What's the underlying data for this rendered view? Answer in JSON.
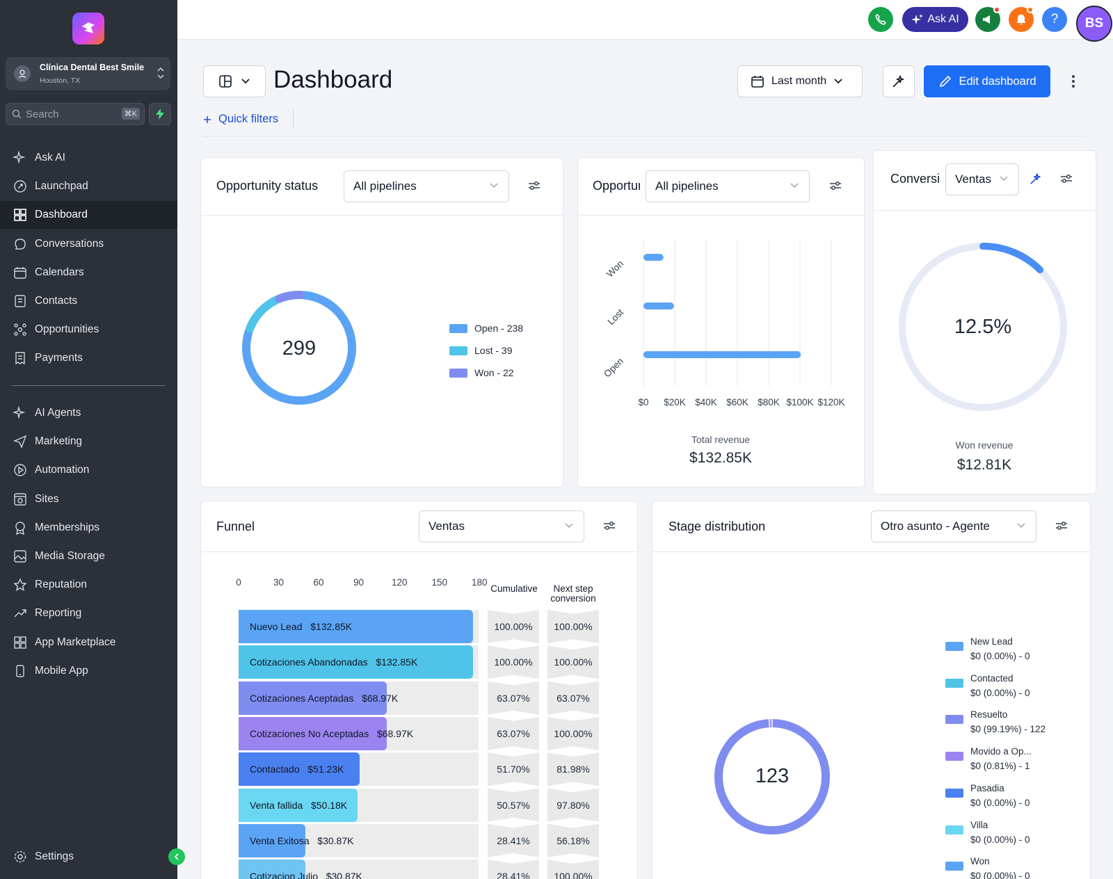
{
  "account": {
    "name": "Clínica Dental Best Smile",
    "location": "Houston, TX"
  },
  "search": {
    "placeholder": "Search",
    "shortcut": "⌘K"
  },
  "nav": {
    "main": [
      {
        "label": "Ask AI",
        "icon": "sparkle-icon"
      },
      {
        "label": "Launchpad",
        "icon": "rocket-icon"
      },
      {
        "label": "Dashboard",
        "icon": "grid-icon",
        "active": true
      },
      {
        "label": "Conversations",
        "icon": "chat-icon"
      },
      {
        "label": "Calendars",
        "icon": "calendar-icon"
      },
      {
        "label": "Contacts",
        "icon": "contacts-icon"
      },
      {
        "label": "Opportunities",
        "icon": "opportunities-icon"
      },
      {
        "label": "Payments",
        "icon": "receipt-icon"
      }
    ],
    "secondary": [
      {
        "label": "AI Agents",
        "icon": "sparkle-icon"
      },
      {
        "label": "Marketing",
        "icon": "send-icon"
      },
      {
        "label": "Automation",
        "icon": "automation-icon"
      },
      {
        "label": "Sites",
        "icon": "sites-icon"
      },
      {
        "label": "Memberships",
        "icon": "badge-icon"
      },
      {
        "label": "Media Storage",
        "icon": "image-icon"
      },
      {
        "label": "Reputation",
        "icon": "star-icon"
      },
      {
        "label": "Reporting",
        "icon": "trend-icon"
      },
      {
        "label": "App Marketplace",
        "icon": "apps-icon"
      },
      {
        "label": "Mobile App",
        "icon": "mobile-icon"
      }
    ],
    "settings": "Settings"
  },
  "topbar": {
    "ask_ai": "Ask AI",
    "help": "?",
    "avatar_initials": "BS"
  },
  "header": {
    "title": "Dashboard",
    "date_range": "Last month",
    "edit_label": "Edit dashboard",
    "quick_filters": "Quick filters"
  },
  "opportunity_status": {
    "title": "Opportunity status",
    "pipeline": "All pipelines",
    "total": "299",
    "legend": [
      {
        "label": "Open - 238",
        "color": "#5ba4f5"
      },
      {
        "label": "Lost - 39",
        "color": "#4fc3e8"
      },
      {
        "label": "Won - 22",
        "color": "#7f8cf0"
      }
    ]
  },
  "opportunity_value": {
    "title": "Opportunity value",
    "pipeline": "All pipelines",
    "total_label": "Total revenue",
    "total_value": "$132.85K"
  },
  "conversion": {
    "title": "Conversion",
    "pipeline": "Ventas",
    "value": "12.5%",
    "won_label": "Won revenue",
    "won_value": "$12.81K"
  },
  "funnel": {
    "title": "Funnel",
    "pipeline": "Ventas",
    "col_cumulative": "Cumulative",
    "col_next": "Next step conversion",
    "axis_ticks": [
      "0",
      "30",
      "60",
      "90",
      "120",
      "150",
      "180"
    ],
    "stages": [
      {
        "name": "Nuevo Lead",
        "value": "$132.85K",
        "count": 176,
        "cumulative": "100.00%",
        "next": "100.00%",
        "color": "#5ba4f5"
      },
      {
        "name": "Cotizaciones Abandonadas",
        "value": "$132.85K",
        "count": 176,
        "cumulative": "100.00%",
        "next": "100.00%",
        "color": "#4fc3e8"
      },
      {
        "name": "Cotizaciones Aceptadas",
        "value": "$68.97K",
        "count": 111,
        "cumulative": "63.07%",
        "next": "63.07%",
        "color": "#7f8cf0"
      },
      {
        "name": "Cotizaciones No Aceptadas",
        "value": "$68.97K",
        "count": 111,
        "cumulative": "63.07%",
        "next": "100.00%",
        "color": "#9b84f0"
      },
      {
        "name": "Contactado",
        "value": "$51.23K",
        "count": 91,
        "cumulative": "51.70%",
        "next": "81.98%",
        "color": "#4a80f0"
      },
      {
        "name": "Venta fallida",
        "value": "$50.18K",
        "count": 89,
        "cumulative": "50.57%",
        "next": "97.80%",
        "color": "#6ad7f2"
      },
      {
        "name": "Venta Exitosa",
        "value": "$30.87K",
        "count": 50,
        "cumulative": "28.41%",
        "next": "56.18%",
        "color": "#5ba4f5"
      },
      {
        "name": "Cotizacion Julio",
        "value": "$30.87K",
        "count": 50,
        "cumulative": "28.41%",
        "next": "100.00%",
        "color": "#6fc4f2"
      }
    ]
  },
  "stage_distribution": {
    "title": "Stage distribution",
    "pipeline": "Otro asunto - Agente",
    "total": "123",
    "legend": [
      {
        "name": "New Lead",
        "detail": "$0 (0.00%) - 0",
        "color": "#5ba4f5"
      },
      {
        "name": "Contacted",
        "detail": "$0 (0.00%) - 0",
        "color": "#4fc3e8"
      },
      {
        "name": "Resuelto",
        "detail": "$0 (99.19%) - 122",
        "color": "#7f8cf0"
      },
      {
        "name": "Movido a Op...",
        "detail": "$0 (0.81%) - 1",
        "color": "#9b84f0"
      },
      {
        "name": "Pasadia",
        "detail": "$0 (0.00%) - 0",
        "color": "#4a80f0"
      },
      {
        "name": "Villa",
        "detail": "$0 (0.00%) - 0",
        "color": "#6ad7f2"
      },
      {
        "name": "Won",
        "detail": "$0 (0.00%) - 0",
        "color": "#5ba4f5"
      }
    ]
  },
  "chart_data": [
    {
      "type": "pie",
      "title": "Opportunity status",
      "categories": [
        "Open",
        "Lost",
        "Won"
      ],
      "values": [
        238,
        39,
        22
      ]
    },
    {
      "type": "bar",
      "title": "",
      "categories": [
        "Won",
        "Lost",
        "Open"
      ],
      "values": [
        12810,
        19500,
        100540
      ],
      "x_ticks": [
        "$0",
        "$20K",
        "$40K",
        "$60K",
        "$80K",
        "$100K",
        "$120K"
      ],
      "xlim": [
        0,
        120000
      ],
      "grid": true
    },
    {
      "type": "pie",
      "title": "Conversion",
      "categories": [
        "Won"
      ],
      "values": [
        12.5
      ]
    },
    {
      "type": "bar",
      "title": "Funnel",
      "categories": [
        "Nuevo Lead",
        "Cotizaciones Abandonadas",
        "Cotizaciones Aceptadas",
        "Cotizaciones No Aceptadas",
        "Contactado",
        "Venta fallida",
        "Venta Exitosa",
        "Cotizacion Julio"
      ],
      "values": [
        176,
        176,
        111,
        111,
        91,
        89,
        50,
        50
      ],
      "xlim": [
        0,
        180
      ]
    },
    {
      "type": "pie",
      "title": "Stage distribution",
      "categories": [
        "New Lead",
        "Contacted",
        "Resuelto",
        "Movido a Op...",
        "Pasadia",
        "Villa",
        "Won"
      ],
      "values": [
        0,
        0,
        122,
        1,
        0,
        0,
        0
      ]
    }
  ]
}
